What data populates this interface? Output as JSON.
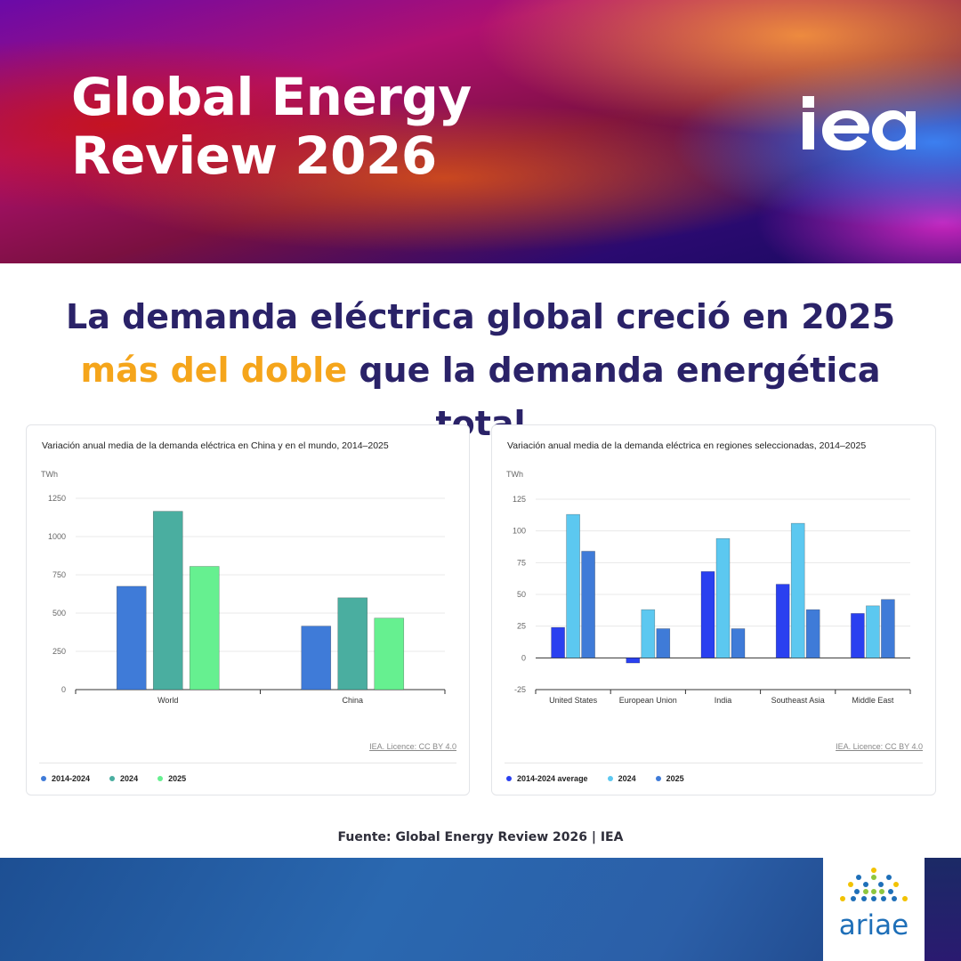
{
  "banner": {
    "title_line1": "Global Energy",
    "title_line2": "Review 2026",
    "logo_text": "iea"
  },
  "headline": {
    "part1": "La demanda eléctrica global creció en 2025 ",
    "highlight": "más del doble",
    "part2": " que la demanda energética total",
    "highlight_color": "#f5a51b",
    "text_color": "#2a2268"
  },
  "left_chart": {
    "title": "Variación anual media de la demanda eléctrica en China y en el mundo, 2014–2025",
    "licence": "IEA. Licence: CC BY 4.0"
  },
  "right_chart": {
    "title": "Variación anual media de la demanda eléctrica en regiones seleccionadas, 2014–2025",
    "licence": "IEA. Licence: CC BY 4.0"
  },
  "chart_data": [
    {
      "type": "bar",
      "title": "Variación anual media de la demanda eléctrica en China y en el mundo, 2014–2025",
      "ylabel": "TWh",
      "categories": [
        "World",
        "China"
      ],
      "series": [
        {
          "name": "2014-2024",
          "color": "#3f7bd8",
          "values": [
            675,
            415
          ]
        },
        {
          "name": "2024",
          "color": "#4aaea0",
          "values": [
            1165,
            600
          ]
        },
        {
          "name": "2025",
          "color": "#66f090",
          "values": [
            805,
            467
          ]
        }
      ],
      "ylim": [
        0,
        1250
      ],
      "yticks": [
        0,
        250,
        500,
        750,
        1000,
        1250
      ],
      "grid": true,
      "legend": "bottom"
    },
    {
      "type": "bar",
      "title": "Variación anual media de la demanda eléctrica en regiones seleccionadas, 2014–2025",
      "ylabel": "TWh",
      "categories": [
        "United States",
        "European Union",
        "India",
        "Southeast Asia",
        "Middle East"
      ],
      "series": [
        {
          "name": "2014-2024 average",
          "color": "#2a40f0",
          "values": [
            24,
            -4,
            68,
            58,
            35
          ]
        },
        {
          "name": "2024",
          "color": "#5cc8f0",
          "values": [
            113,
            38,
            94,
            106,
            41
          ]
        },
        {
          "name": "2025",
          "color": "#3f7bd8",
          "values": [
            84,
            23,
            23,
            38,
            46
          ]
        }
      ],
      "ylim": [
        -25,
        125
      ],
      "yticks": [
        -25,
        0,
        25,
        50,
        75,
        100,
        125
      ],
      "grid": true,
      "legend": "bottom"
    }
  ],
  "source": "Fuente: Global Energy Review 2026 | IEA",
  "footer": {
    "brand": "ariae"
  }
}
